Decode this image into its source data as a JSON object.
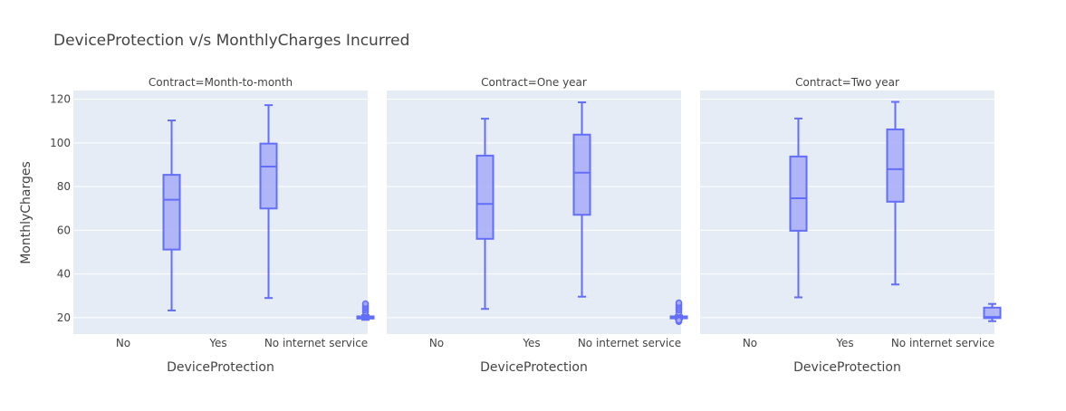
{
  "chart_data": {
    "type": "box",
    "title": "DeviceProtection v/s MonthlyCharges Incurred",
    "ylabel": "MonthlyCharges",
    "xlabel": "DeviceProtection",
    "ylim": [
      12.5,
      124
    ],
    "yticks": [
      20,
      40,
      60,
      80,
      100,
      120
    ],
    "categories": [
      "No",
      "Yes",
      "No internet service"
    ],
    "grid": true,
    "colors": {
      "box_line": "#636efa",
      "box_fill": "#a6abf6",
      "plot_bg": "#e5ecf6",
      "grid": "#ffffff",
      "text": "#444444",
      "title": "#444444"
    },
    "facets": [
      {
        "title": "Contract=Month-to-month",
        "boxes": [
          {
            "category": "No",
            "lower_fence": 23.3,
            "q1": 51.2,
            "median": 74,
            "q3": 85.4,
            "upper_fence": 110.3,
            "outliers": []
          },
          {
            "category": "Yes",
            "lower_fence": 29,
            "q1": 70,
            "median": 89.2,
            "q3": 99.7,
            "upper_fence": 117.3,
            "outliers": []
          },
          {
            "category": "No internet service",
            "lower_fence": 19,
            "q1": 19.6,
            "median": 20.1,
            "q3": 20.6,
            "upper_fence": 21.2,
            "outliers": [
              22.5,
              23.5,
              24.3,
              25,
              25.7,
              26.4
            ]
          }
        ]
      },
      {
        "title": "Contract=One year",
        "boxes": [
          {
            "category": "No",
            "lower_fence": 24,
            "q1": 56.1,
            "median": 72.1,
            "q3": 94.2,
            "upper_fence": 111.1,
            "outliers": []
          },
          {
            "category": "Yes",
            "lower_fence": 29.6,
            "q1": 67.1,
            "median": 86.4,
            "q3": 103.8,
            "upper_fence": 118.6,
            "outliers": []
          },
          {
            "category": "No internet service",
            "lower_fence": 19.2,
            "q1": 19.7,
            "median": 20.1,
            "q3": 20.6,
            "upper_fence": 21.1,
            "outliers": [
              18.2,
              18.8,
              22.4,
              23.6,
              24.5,
              25.3,
              26.1,
              26.8
            ]
          }
        ]
      },
      {
        "title": "Contract=Two year",
        "boxes": [
          {
            "category": "No",
            "lower_fence": 29.3,
            "q1": 59.8,
            "median": 74.7,
            "q3": 93.8,
            "upper_fence": 111.2,
            "outliers": []
          },
          {
            "category": "Yes",
            "lower_fence": 35.2,
            "q1": 73.1,
            "median": 88,
            "q3": 106.2,
            "upper_fence": 118.8,
            "outliers": []
          },
          {
            "category": "No internet service",
            "lower_fence": 18.4,
            "q1": 19.8,
            "median": 20.3,
            "q3": 24.6,
            "upper_fence": 26.3,
            "outliers": []
          }
        ]
      }
    ]
  }
}
